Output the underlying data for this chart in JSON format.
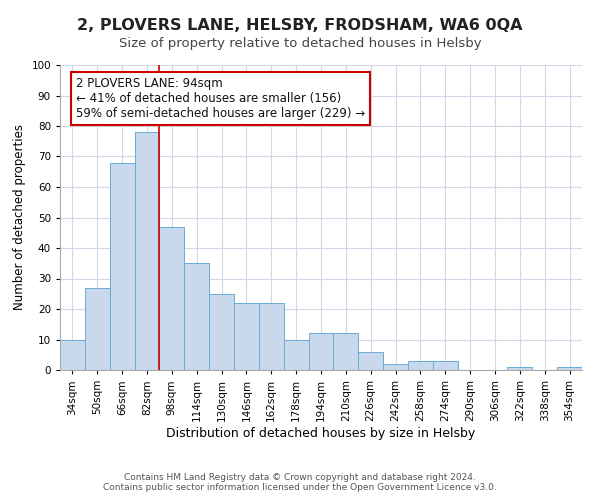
{
  "title": "2, PLOVERS LANE, HELSBY, FRODSHAM, WA6 0QA",
  "subtitle": "Size of property relative to detached houses in Helsby",
  "xlabel": "Distribution of detached houses by size in Helsby",
  "ylabel": "Number of detached properties",
  "bar_color": "#c8d9ee",
  "bar_edge_color": "#6aaad4",
  "background_color": "#ffffff",
  "grid_color": "#d0d8e8",
  "bin_labels": [
    "34sqm",
    "50sqm",
    "66sqm",
    "82sqm",
    "98sqm",
    "114sqm",
    "130sqm",
    "146sqm",
    "162sqm",
    "178sqm",
    "194sqm",
    "210sqm",
    "226sqm",
    "242sqm",
    "258sqm",
    "274sqm",
    "290sqm",
    "306sqm",
    "322sqm",
    "338sqm",
    "354sqm"
  ],
  "bar_values": [
    10,
    27,
    68,
    78,
    47,
    35,
    25,
    22,
    22,
    10,
    12,
    12,
    6,
    2,
    3,
    3,
    0,
    0,
    1,
    0,
    1
  ],
  "ylim": [
    0,
    100
  ],
  "yticks": [
    0,
    10,
    20,
    30,
    40,
    50,
    60,
    70,
    80,
    90,
    100
  ],
  "vline_color": "#cc0000",
  "annotation_text": "2 PLOVERS LANE: 94sqm\n← 41% of detached houses are smaller (156)\n59% of semi-detached houses are larger (229) →",
  "annotation_box_color": "#ffffff",
  "annotation_box_edge": "#cc0000",
  "footer_line1": "Contains HM Land Registry data © Crown copyright and database right 2024.",
  "footer_line2": "Contains public sector information licensed under the Open Government Licence v3.0.",
  "title_fontsize": 11.5,
  "subtitle_fontsize": 9.5,
  "xlabel_fontsize": 9,
  "ylabel_fontsize": 8.5,
  "tick_fontsize": 7.5,
  "annotation_fontsize": 8.5,
  "footer_fontsize": 6.5
}
